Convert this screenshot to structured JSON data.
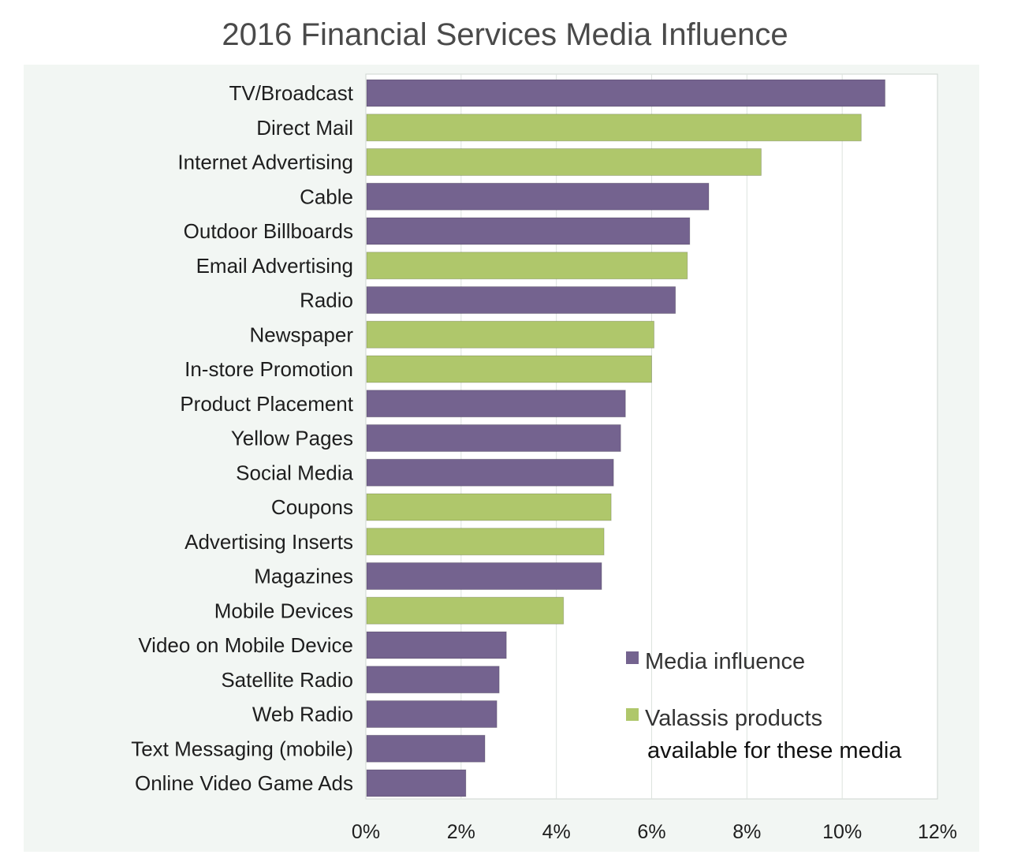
{
  "chart_data": {
    "type": "bar",
    "orientation": "horizontal",
    "title": "2016 Financial Services Media Influence",
    "xlabel": "",
    "ylabel": "",
    "xlim": [
      0,
      12
    ],
    "x_ticks": [
      "0%",
      "2%",
      "4%",
      "6%",
      "8%",
      "10%",
      "12%"
    ],
    "grid": true,
    "legend_position": "bottom-right",
    "categories": [
      "TV/Broadcast",
      "Direct Mail",
      "Internet Advertising",
      "Cable",
      "Outdoor Billboards",
      "Email Advertising",
      "Radio",
      "Newspaper",
      "In-store Promotion",
      "Product Placement",
      "Yellow Pages",
      "Social Media",
      "Coupons",
      "Advertising Inserts",
      "Magazines",
      "Mobile Devices",
      "Video on Mobile Device",
      "Satellite Radio",
      "Web Radio",
      "Text Messaging (mobile)",
      "Online Video Game Ads"
    ],
    "values": [
      10.9,
      10.4,
      8.3,
      7.2,
      6.8,
      6.75,
      6.5,
      6.05,
      6.0,
      5.45,
      5.35,
      5.2,
      5.15,
      5.0,
      4.95,
      4.15,
      2.95,
      2.8,
      2.75,
      2.5,
      2.1
    ],
    "bar_series": [
      "Media influence",
      "Valassis products available for these media",
      "Valassis products available for these media",
      "Media influence",
      "Media influence",
      "Valassis products available for these media",
      "Media influence",
      "Valassis products available for these media",
      "Valassis products available for these media",
      "Media influence",
      "Media influence",
      "Media influence",
      "Valassis products available for these media",
      "Valassis products available for these media",
      "Media influence",
      "Valassis products available for these media",
      "Media influence",
      "Media influence",
      "Media influence",
      "Media influence",
      "Media influence"
    ],
    "series_colors": {
      "Media influence": "#74638f",
      "Valassis products available for these media": "#afc76b"
    },
    "legend": {
      "items": [
        {
          "lines": [
            "Media influence"
          ],
          "color": "#74638f"
        },
        {
          "lines": [
            "Valassis products",
            "available for these media"
          ],
          "color": "#afc76b"
        }
      ]
    }
  }
}
